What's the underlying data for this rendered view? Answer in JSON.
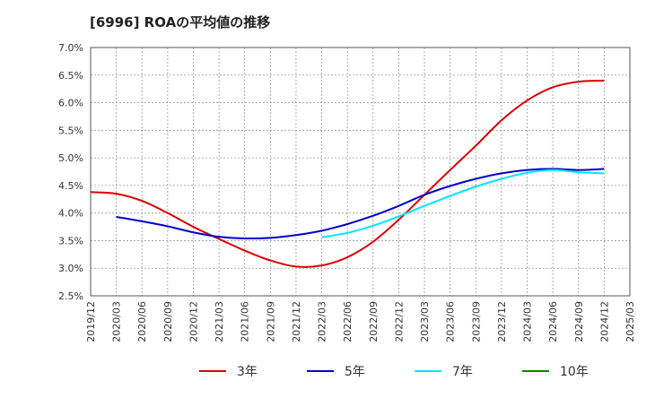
{
  "chart_data": {
    "type": "line",
    "title": "[6996]  ROAの平均値の推移",
    "xlabel": "",
    "ylabel": "",
    "x": [
      "2019/12",
      "2020/03",
      "2020/06",
      "2020/09",
      "2020/12",
      "2021/03",
      "2021/06",
      "2021/09",
      "2021/12",
      "2022/03",
      "2022/06",
      "2022/09",
      "2022/12",
      "2023/03",
      "2023/06",
      "2023/09",
      "2023/12",
      "2024/03",
      "2024/06",
      "2024/09",
      "2024/12",
      "2025/03"
    ],
    "y_ticks": [
      2.5,
      3.0,
      3.5,
      4.0,
      4.5,
      5.0,
      5.5,
      6.0,
      6.5,
      7.0
    ],
    "y_tick_labels": [
      "2.5%",
      "3.0%",
      "3.5%",
      "4.0%",
      "4.5%",
      "5.0%",
      "5.5%",
      "6.0%",
      "6.5%",
      "7.0%"
    ],
    "ylim": [
      2.5,
      7.0
    ],
    "grid": true,
    "legend_position": "bottom",
    "series": [
      {
        "name": "3年",
        "color": "#dd0000",
        "values": [
          4.38,
          4.35,
          4.22,
          4.0,
          3.75,
          3.53,
          3.32,
          3.14,
          3.03,
          3.05,
          3.2,
          3.48,
          3.88,
          4.33,
          4.78,
          5.22,
          5.68,
          6.04,
          6.28,
          6.38,
          6.4,
          null
        ]
      },
      {
        "name": "5年",
        "color": "#0000cc",
        "values": [
          null,
          3.93,
          3.85,
          3.76,
          3.65,
          3.57,
          3.54,
          3.55,
          3.6,
          3.68,
          3.8,
          3.95,
          4.13,
          4.33,
          4.49,
          4.62,
          4.72,
          4.78,
          4.8,
          4.78,
          4.8,
          null
        ]
      },
      {
        "name": "7年",
        "color": "#00e5ff",
        "values": [
          null,
          null,
          null,
          null,
          null,
          null,
          null,
          null,
          null,
          3.56,
          3.64,
          3.77,
          3.94,
          4.13,
          4.31,
          4.48,
          4.62,
          4.73,
          4.78,
          4.74,
          4.72,
          null
        ]
      },
      {
        "name": "10年",
        "color": "#008800",
        "values": [
          null,
          null,
          null,
          null,
          null,
          null,
          null,
          null,
          null,
          null,
          null,
          null,
          null,
          null,
          null,
          null,
          null,
          null,
          null,
          null,
          null,
          null
        ]
      }
    ]
  }
}
